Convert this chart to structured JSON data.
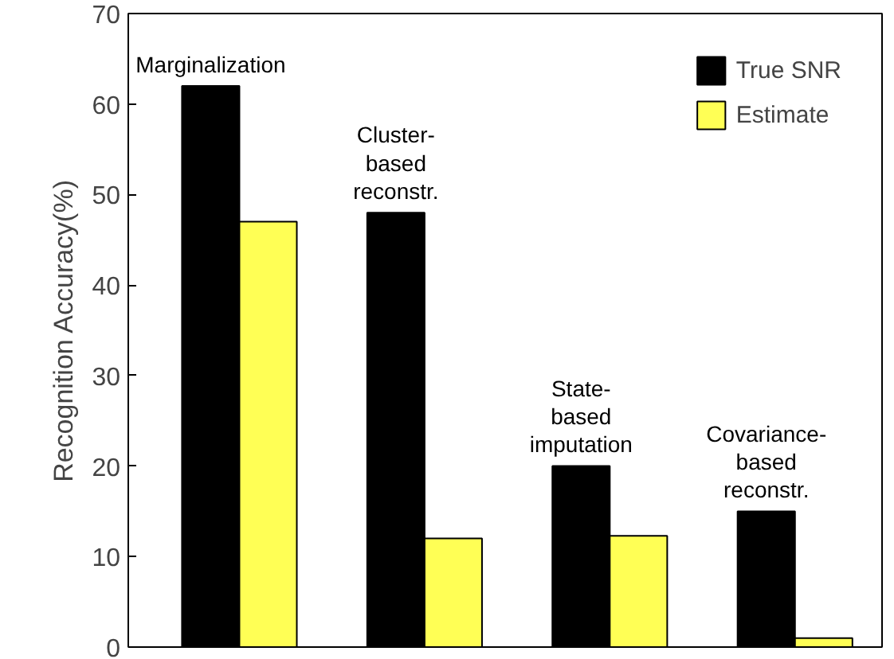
{
  "chart_data": {
    "type": "bar",
    "ylabel": "Recognition Accuracy(%)",
    "categories": [
      "Marginalization",
      "Cluster-\nbased\nreconstr.",
      "State-\nbased\nimputation",
      "Covariance-\nbased\nreconstr."
    ],
    "series": [
      {
        "name": "True SNR",
        "color": "#000000",
        "values": [
          62,
          48,
          20,
          15
        ]
      },
      {
        "name": "Estimate",
        "color": "#ffff55",
        "values": [
          47,
          12,
          12.3,
          1
        ]
      }
    ],
    "ylim": [
      0,
      70
    ],
    "yticks": [
      0,
      10,
      20,
      30,
      40,
      50,
      60,
      70
    ],
    "grid": false,
    "legend": "top right"
  }
}
